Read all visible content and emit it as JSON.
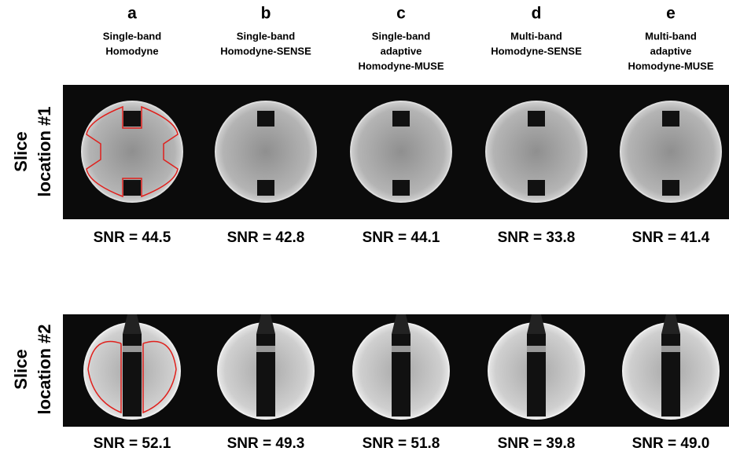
{
  "columns": [
    {
      "letter": "a",
      "label": [
        "Single-band",
        "Homodyne"
      ]
    },
    {
      "letter": "b",
      "label": [
        "Single-band",
        "Homodyne-SENSE"
      ]
    },
    {
      "letter": "c",
      "label": [
        "Single-band",
        "adaptive",
        "Homodyne-MUSE"
      ]
    },
    {
      "letter": "d",
      "label": [
        "Multi-band",
        "Homodyne-SENSE"
      ]
    },
    {
      "letter": "e",
      "label": [
        "Multi-band",
        "adaptive",
        "Homodyne-MUSE"
      ]
    }
  ],
  "rows": [
    {
      "label": [
        "Slice",
        "location #1"
      ],
      "snr": [
        "SNR = 44.5",
        "SNR = 42.8",
        "SNR = 44.1",
        "SNR = 33.8",
        "SNR = 41.4"
      ]
    },
    {
      "label": [
        "Slice",
        "location #2"
      ],
      "snr": [
        "SNR = 52.1",
        "SNR = 49.3",
        "SNR = 51.8",
        "SNR = 39.8",
        "SNR = 49.0"
      ]
    }
  ]
}
